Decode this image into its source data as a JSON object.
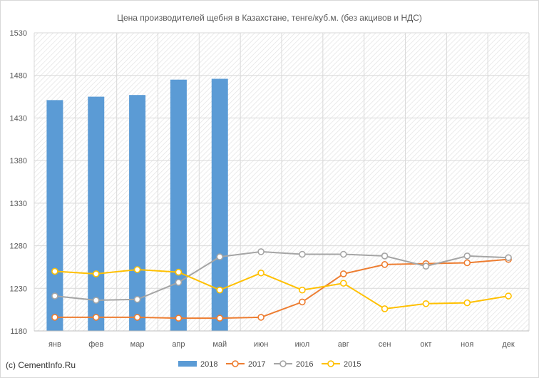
{
  "source_label": "(c) CementInfo.Ru",
  "chart_data": {
    "type": "bar+line",
    "title": "Цена производителей щебня в Казахстане, тенге/куб.м. (без акцивов и НДС)",
    "categories": [
      "янв",
      "фев",
      "мар",
      "апр",
      "май",
      "июн",
      "июл",
      "авг",
      "сен",
      "окт",
      "ноя",
      "дек"
    ],
    "ylim": [
      1180,
      1530
    ],
    "yticks": [
      1180,
      1230,
      1280,
      1330,
      1380,
      1430,
      1480,
      1530
    ],
    "legend_position": "bottom",
    "background": "diagonal-hatch",
    "bar_series": {
      "name": "2018",
      "color": "#5b9bd5",
      "values": [
        1451,
        1455,
        1457,
        1475,
        1476
      ]
    },
    "line_series": [
      {
        "name": "2017",
        "color": "#ed7d31",
        "values": [
          1196,
          1196,
          1196,
          1195,
          1195,
          1196,
          1214,
          1247,
          1258,
          1259,
          1260,
          1264
        ]
      },
      {
        "name": "2016",
        "color": "#a5a5a5",
        "values": [
          1221,
          1216,
          1217,
          1237,
          1267,
          1273,
          1270,
          1270,
          1268,
          1256,
          1268,
          1266
        ]
      },
      {
        "name": "2015",
        "color": "#ffc000",
        "values": [
          1250,
          1247,
          1252,
          1249,
          1228,
          1248,
          1228,
          1236,
          1206,
          1212,
          1213,
          1221
        ]
      }
    ]
  }
}
